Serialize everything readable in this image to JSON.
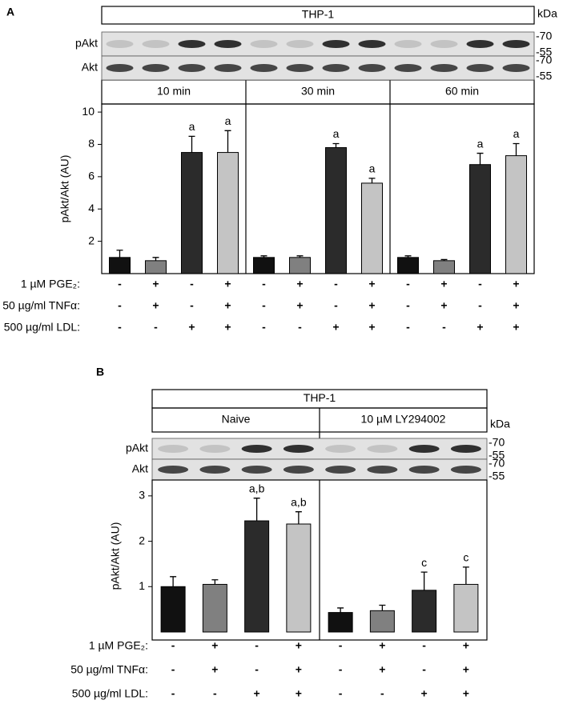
{
  "chart_data": [
    {
      "type": "bar",
      "panel": "A",
      "title": "THP-1",
      "ylabel": "pAkt/Akt (AU)",
      "groups": [
        "10 min",
        "30 min",
        "60 min"
      ],
      "blot_rows": [
        "pAkt",
        "Akt"
      ],
      "kda_title": "kDa",
      "kda_markers": [
        "-70",
        "-55",
        "-70",
        "-55"
      ],
      "values": [
        1.0,
        0.8,
        7.5,
        7.5,
        1.0,
        1.0,
        7.8,
        5.6,
        1.0,
        0.8,
        6.75,
        7.3
      ],
      "errors": [
        0.45,
        0.2,
        1.0,
        1.35,
        0.1,
        0.1,
        0.25,
        0.3,
        0.1,
        0.07,
        0.7,
        0.75
      ],
      "colors": [
        "#111111",
        "#808080",
        "#2b2b2b",
        "#c4c4c4"
      ],
      "sig_labels": [
        null,
        null,
        "a",
        "a",
        null,
        null,
        "a",
        "a",
        null,
        null,
        "a",
        "a"
      ],
      "ylim": [
        0,
        10.5
      ],
      "yticks": [
        2,
        4,
        6,
        8,
        10
      ],
      "conditions": [
        {
          "label": "1 µM PGE₂:",
          "signs": [
            "-",
            "+",
            "-",
            "+",
            "-",
            "+",
            "-",
            "+",
            "-",
            "+",
            "-",
            "+"
          ]
        },
        {
          "label": "50 µg/ml TNFα:",
          "signs": [
            "-",
            "+",
            "-",
            "+",
            "-",
            "+",
            "-",
            "+",
            "-",
            "+",
            "-",
            "+"
          ]
        },
        {
          "label": "500 µg/ml LDL:",
          "signs": [
            "-",
            "-",
            "+",
            "+",
            "-",
            "-",
            "+",
            "+",
            "-",
            "-",
            "+",
            "+"
          ]
        }
      ]
    },
    {
      "type": "bar",
      "panel": "B",
      "title": "THP-1",
      "ylabel": "pAkt/Akt (AU)",
      "groups": [
        "Naive",
        "10 µM LY294002"
      ],
      "blot_rows": [
        "pAkt",
        "Akt"
      ],
      "kda_title": "kDa",
      "kda_markers": [
        "-70",
        "-55",
        "-70",
        "-55"
      ],
      "values": [
        1.0,
        1.05,
        2.45,
        2.38,
        0.43,
        0.47,
        0.92,
        1.05
      ],
      "errors": [
        0.22,
        0.1,
        0.5,
        0.27,
        0.1,
        0.12,
        0.4,
        0.38
      ],
      "colors": [
        "#111111",
        "#808080",
        "#2b2b2b",
        "#c4c4c4"
      ],
      "sig_labels": [
        null,
        null,
        "a,b",
        "a,b",
        null,
        null,
        "c",
        "c"
      ],
      "ylim": [
        0,
        3.35
      ],
      "yticks": [
        1,
        2,
        3
      ],
      "conditions": [
        {
          "label": "1 µM PGE₂:",
          "signs": [
            "-",
            "+",
            "-",
            "+",
            "-",
            "+",
            "-",
            "+"
          ]
        },
        {
          "label": "50 µg/ml TNFα:",
          "signs": [
            "-",
            "+",
            "-",
            "+",
            "-",
            "+",
            "-",
            "+"
          ]
        },
        {
          "label": "500 µg/ml LDL:",
          "signs": [
            "-",
            "-",
            "+",
            "+",
            "-",
            "-",
            "+",
            "+"
          ]
        }
      ]
    }
  ]
}
